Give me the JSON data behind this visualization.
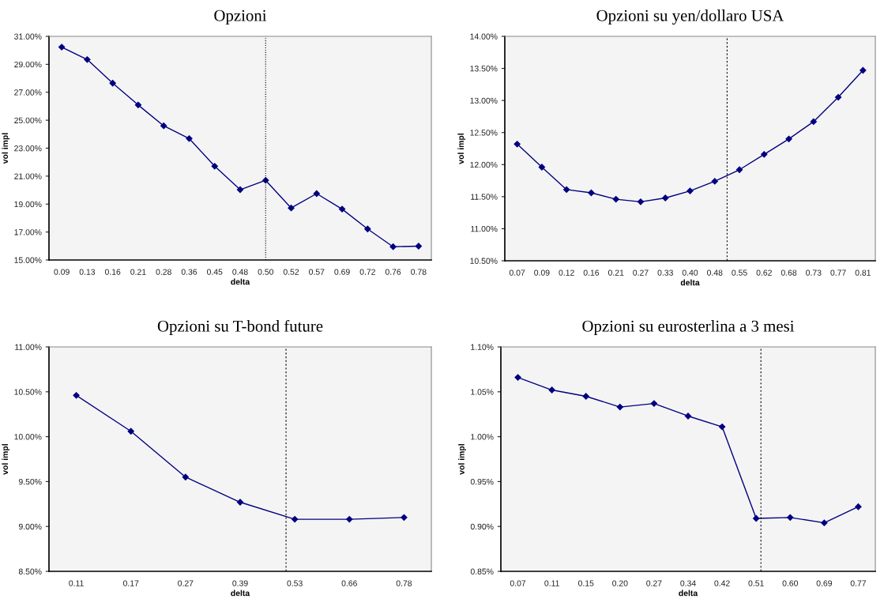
{
  "chart_data": [
    {
      "type": "line",
      "title": "Opzioni",
      "xlabel": "delta",
      "ylabel": "vol impl",
      "categories": [
        "0.09",
        "0.13",
        "0.16",
        "0.21",
        "0.28",
        "0.36",
        "0.45",
        "0.48",
        "0.50",
        "0.52",
        "0.57",
        "0.69",
        "0.72",
        "0.76",
        "0.78"
      ],
      "series": [
        {
          "color": "#000080",
          "values": [
            30.23,
            29.34,
            27.65,
            26.09,
            24.6,
            23.69,
            21.71,
            20.03,
            20.7,
            18.72,
            19.75,
            18.64,
            17.22,
            15.95,
            15.99
          ]
        }
      ],
      "ylim": [
        15,
        31
      ],
      "yticks": [
        {
          "value": 15,
          "label": "15.00%"
        },
        {
          "value": 17,
          "label": "17.00%"
        },
        {
          "value": 19,
          "label": "19.00%"
        },
        {
          "value": 21,
          "label": "21.00%"
        },
        {
          "value": 23,
          "label": "23.00%"
        },
        {
          "value": 25,
          "label": "25.00%"
        },
        {
          "value": 27,
          "label": "27.00%"
        },
        {
          "value": 29,
          "label": "29.00%"
        },
        {
          "value": 31,
          "label": "31.00%"
        }
      ],
      "ref_lines": [
        {
          "axis": "x",
          "value": "0.50",
          "color": "#000000",
          "line_style": "dotted"
        }
      ],
      "marker": "diamond",
      "grid": false
    },
    {
      "type": "line",
      "title": "Opzioni su yen/dollaro USA",
      "xlabel": "delta",
      "ylabel": "vol impl",
      "categories": [
        "0.07",
        "0.09",
        "0.12",
        "0.16",
        "0.21",
        "0.27",
        "0.33",
        "0.40",
        "0.48",
        "0.55",
        "0.62",
        "0.68",
        "0.73",
        "0.77",
        "0.81"
      ],
      "series": [
        {
          "color": "#000080",
          "values": [
            12.32,
            11.96,
            11.61,
            11.56,
            11.46,
            11.42,
            11.48,
            11.59,
            11.74,
            11.92,
            12.16,
            12.4,
            12.67,
            13.05,
            13.47
          ]
        }
      ],
      "ylim": [
        10.5,
        14
      ],
      "yticks": [
        {
          "value": 10.5,
          "label": "10.50%"
        },
        {
          "value": 11,
          "label": "11.00%"
        },
        {
          "value": 11.5,
          "label": "11.50%"
        },
        {
          "value": 12,
          "label": "12.00%"
        },
        {
          "value": 12.5,
          "label": "12.50%"
        },
        {
          "value": 13,
          "label": "13.00%"
        },
        {
          "value": 13.5,
          "label": "13.50%"
        },
        {
          "value": 14,
          "label": "14.00%"
        }
      ],
      "marker": "diamond",
      "grid": false
    },
    {
      "type": "line",
      "title": "Opzioni su T-bond future",
      "xlabel": "delta",
      "ylabel": "vol impl",
      "categories": [
        "0.11",
        "0.17",
        "0.27",
        "0.39",
        "0.53",
        "0.66",
        "0.78"
      ],
      "series": [
        {
          "color": "#000080",
          "values": [
            10.46,
            10.06,
            9.55,
            9.27,
            9.08,
            9.08,
            9.1
          ]
        }
      ],
      "ylim": [
        8.5,
        11
      ],
      "yticks": [
        {
          "value": 8.5,
          "label": "8.50%"
        },
        {
          "value": 9,
          "label": "9.00%"
        },
        {
          "value": 9.5,
          "label": "9.50%"
        },
        {
          "value": 10,
          "label": "10.00%"
        },
        {
          "value": 10.5,
          "label": "10.50%"
        },
        {
          "value": 11,
          "label": "11.00%"
        }
      ],
      "marker": "diamond",
      "grid": false
    },
    {
      "type": "line",
      "title": "Opzioni su eurosterlina a 3 mesi",
      "xlabel": "delta",
      "ylabel": "vol impl",
      "categories": [
        "0.07",
        "0.11",
        "0.15",
        "0.20",
        "0.27",
        "0.34",
        "0.42",
        "0.51",
        "0.60",
        "0.69",
        "0.77"
      ],
      "series": [
        {
          "color": "#000080",
          "values": [
            1.066,
            1.052,
            1.045,
            1.033,
            1.037,
            1.023,
            1.011,
            0.909,
            0.91,
            0.904,
            0.922
          ]
        }
      ],
      "ylim": [
        0.85,
        1.1
      ],
      "yticks": [
        {
          "value": 0.85,
          "label": "0.85%"
        },
        {
          "value": 0.9,
          "label": "0.90%"
        },
        {
          "value": 0.95,
          "label": "0.95%"
        },
        {
          "value": 1.0,
          "label": "1.00%"
        },
        {
          "value": 1.05,
          "label": "1.05%"
        },
        {
          "value": 1.1,
          "label": "1.10%"
        }
      ],
      "marker": "diamond",
      "grid": false
    }
  ]
}
